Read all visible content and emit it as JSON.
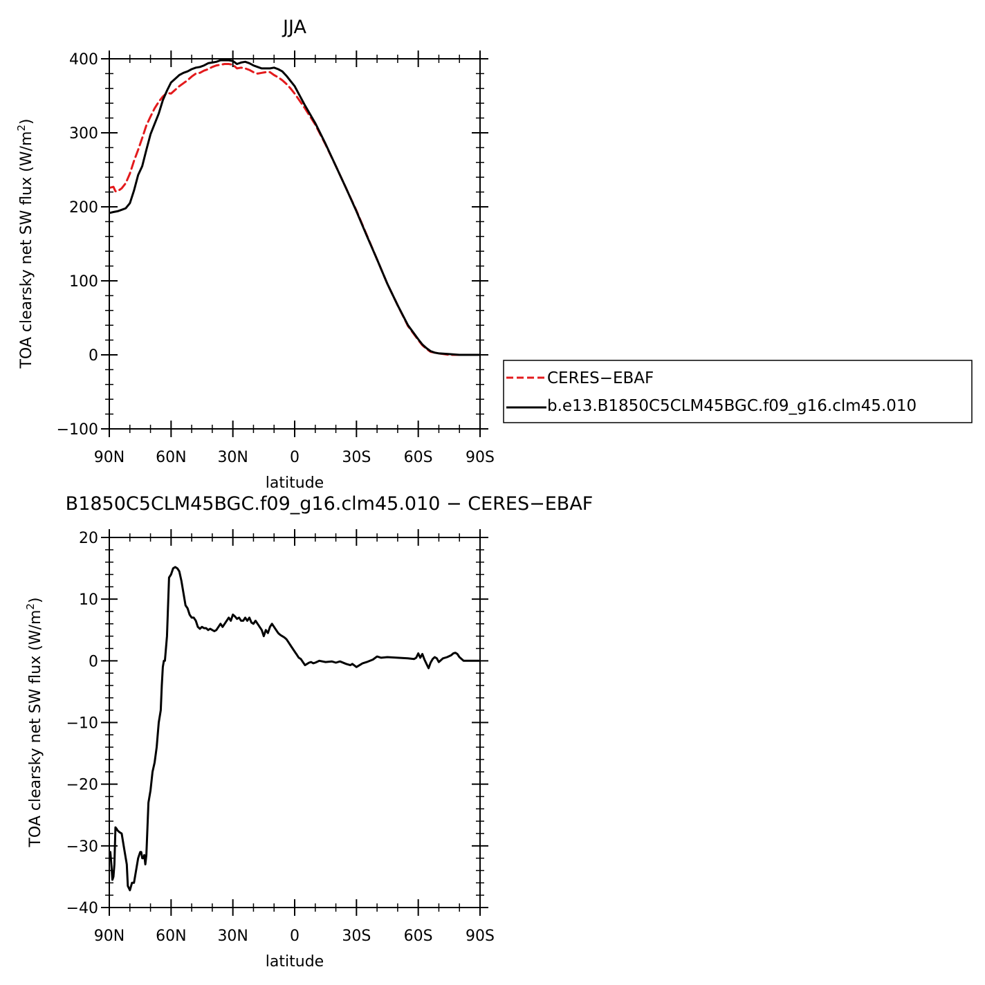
{
  "chart_data": [
    {
      "type": "line",
      "title": "JJA",
      "xlabel": "latitude",
      "ylabel": "TOA clearsky net SW flux (W/m²)",
      "ylabel_parts": {
        "main": "TOA clearsky net SW flux (W/m",
        "sup": "2",
        "tail": ")"
      },
      "xlim": [
        90,
        -90
      ],
      "ylim": [
        -100,
        400
      ],
      "x_ticks": [
        90,
        60,
        30,
        0,
        -30,
        -60,
        -90
      ],
      "x_tick_labels": [
        "90N",
        "60N",
        "30N",
        "0",
        "30S",
        "60S",
        "90S"
      ],
      "y_ticks": [
        -100,
        0,
        100,
        200,
        300,
        400
      ],
      "y_tick_labels": [
        "−100",
        "0",
        "100",
        "200",
        "300",
        "400"
      ],
      "grid": false,
      "legend_position": "right",
      "series": [
        {
          "name": "CERES−EBAF",
          "color": "#e31a1c",
          "dash": "dashed",
          "x": [
            89.5,
            88,
            87,
            86,
            84,
            82,
            80,
            78,
            76,
            74,
            72,
            70,
            68,
            66,
            64,
            62,
            60,
            58,
            56,
            54,
            52,
            50,
            48,
            46,
            44,
            42,
            40,
            38,
            36,
            34,
            32,
            30,
            28,
            26,
            24,
            22,
            20,
            18,
            16,
            14,
            12,
            10,
            8,
            6,
            4,
            2,
            0,
            -5,
            -10,
            -15,
            -20,
            -25,
            -30,
            -35,
            -40,
            -45,
            -50,
            -55,
            -60,
            -62,
            -64,
            -66,
            -68,
            -70,
            -75,
            -80,
            -85,
            -89.5
          ],
          "y": [
            226,
            227,
            221,
            221,
            225,
            232,
            245,
            262,
            277,
            293,
            310,
            322,
            333,
            342,
            349,
            354,
            353,
            358,
            363,
            367,
            371,
            376,
            380,
            381,
            384,
            386,
            389,
            391,
            392,
            393,
            393,
            392,
            387,
            388,
            387,
            385,
            382,
            380,
            381,
            382,
            382,
            378,
            375,
            371,
            366,
            360,
            353,
            333,
            311,
            284,
            255,
            225,
            195,
            162,
            129,
            96,
            67,
            39,
            20,
            13,
            8,
            4,
            3,
            2,
            0,
            0,
            0,
            0
          ]
        },
        {
          "name": "b.e13.B1850C5CLM45BGC.f09_g16.clm45.010",
          "color": "#000000",
          "dash": "solid",
          "x": [
            89.5,
            88,
            86,
            84,
            82,
            80,
            78,
            76,
            74,
            72,
            70,
            68,
            66,
            64,
            62,
            60,
            58,
            56,
            54,
            52,
            50,
            48,
            46,
            44,
            42,
            40,
            38,
            36,
            34,
            32,
            30,
            28,
            26,
            24,
            22,
            20,
            18,
            16,
            14,
            12,
            10,
            8,
            6,
            4,
            2,
            0,
            -5,
            -10,
            -15,
            -20,
            -25,
            -30,
            -35,
            -40,
            -45,
            -50,
            -55,
            -60,
            -62,
            -64,
            -66,
            -68,
            -70,
            -75,
            -80,
            -85,
            -89.5
          ],
          "y": [
            192,
            193,
            194,
            196,
            198,
            205,
            222,
            243,
            255,
            277,
            298,
            312,
            326,
            344,
            357,
            368,
            373,
            378,
            381,
            383,
            386,
            388,
            389,
            391,
            394,
            395,
            396,
            398,
            398,
            398,
            397,
            393,
            395,
            396,
            394,
            391,
            389,
            387,
            387,
            387,
            388,
            386,
            383,
            377,
            370,
            363,
            337,
            313,
            285,
            255,
            225,
            194,
            161,
            129,
            96,
            67,
            40,
            21,
            14,
            9,
            5,
            3,
            2,
            1,
            0,
            0,
            0
          ]
        }
      ]
    },
    {
      "type": "line",
      "title": "B1850C5CLM45BGC.f09_g16.clm45.010 − CERES−EBAF",
      "xlabel": "latitude",
      "ylabel": "TOA clearsky net SW flux (W/m²)",
      "ylabel_parts": {
        "main": "TOA clearsky net SW flux (W/m",
        "sup": "2",
        "tail": ")"
      },
      "xlim": [
        90,
        -90
      ],
      "ylim": [
        -40,
        20
      ],
      "x_ticks": [
        90,
        60,
        30,
        0,
        -30,
        -60,
        -90
      ],
      "x_tick_labels": [
        "90N",
        "60N",
        "30N",
        "0",
        "30S",
        "60S",
        "90S"
      ],
      "y_ticks": [
        -40,
        -30,
        -20,
        -10,
        0,
        10,
        20
      ],
      "y_tick_labels": [
        "−40",
        "−30",
        "−20",
        "−10",
        "0",
        "10",
        "20"
      ],
      "grid": false,
      "series": [
        {
          "name": "",
          "color": "#000000",
          "dash": "solid",
          "x": [
            89.5,
            89,
            88.5,
            88,
            87.5,
            87,
            86.5,
            86,
            85,
            84,
            83,
            82.5,
            82,
            81.5,
            81,
            80,
            79,
            78,
            77,
            76,
            75,
            74.5,
            74,
            73.5,
            73,
            72.5,
            72,
            71,
            70,
            69,
            68,
            67,
            66.5,
            66,
            65,
            64.5,
            64,
            63.5,
            63,
            62,
            61,
            60,
            59,
            58,
            57,
            56,
            55,
            54,
            53,
            52,
            51,
            50,
            49,
            48,
            47,
            46,
            45,
            44,
            43,
            42,
            41,
            40,
            39,
            38,
            37,
            36,
            35,
            34,
            33,
            32,
            31,
            30,
            29,
            28,
            27,
            26,
            25,
            24,
            23,
            22,
            21,
            20,
            19,
            18,
            17,
            16,
            15,
            14,
            13,
            12,
            11,
            10,
            9,
            8,
            7,
            6,
            5,
            4,
            3,
            2,
            1,
            0,
            -1,
            -2,
            -3,
            -4,
            -5,
            -6,
            -7,
            -8,
            -9,
            -10,
            -12,
            -15,
            -18,
            -20,
            -22,
            -25,
            -27,
            -28,
            -30,
            -32,
            -33,
            -35,
            -38,
            -40,
            -42,
            -45,
            -50,
            -55,
            -58,
            -59,
            -60,
            -61,
            -62,
            -63,
            -64,
            -65,
            -66,
            -67,
            -68,
            -69,
            -70,
            -72,
            -74,
            -76,
            -77,
            -78,
            -79,
            -80,
            -82,
            -85,
            -89.5
          ],
          "y": [
            -31,
            -33,
            -35.5,
            -35,
            -33,
            -27,
            -27.2,
            -27.5,
            -27.8,
            -28,
            -30,
            -31,
            -32,
            -33,
            -36.5,
            -37.2,
            -36,
            -36,
            -34,
            -32,
            -31,
            -31,
            -32,
            -32,
            -31.5,
            -33,
            -31.5,
            -23,
            -21,
            -18,
            -16.5,
            -14,
            -12,
            -10,
            -8,
            -4,
            -1,
            0,
            0,
            4,
            13.5,
            14,
            15,
            15.2,
            15,
            14.5,
            13,
            11,
            9,
            8.5,
            7.5,
            7,
            7,
            6.5,
            5.5,
            5.2,
            5.5,
            5.3,
            5.3,
            5,
            5.2,
            5,
            4.8,
            5,
            5.5,
            6,
            5.5,
            6,
            6.5,
            7,
            6.5,
            7.5,
            7.2,
            6.8,
            7,
            6.5,
            6.5,
            7,
            6.5,
            7,
            6.2,
            6,
            6.5,
            6,
            5.5,
            5,
            4,
            5,
            4.5,
            5.5,
            6,
            5.5,
            5,
            4.5,
            4.2,
            4,
            3.8,
            3.5,
            3,
            2.5,
            2,
            1.5,
            1,
            0.5,
            0.3,
            -0.2,
            -0.7,
            -0.5,
            -0.3,
            -0.2,
            -0.4,
            -0.3,
            0,
            -0.2,
            -0.1,
            -0.3,
            -0.1,
            -0.5,
            -0.7,
            -0.5,
            -1,
            -0.6,
            -0.4,
            -0.2,
            0.2,
            0.7,
            0.5,
            0.6,
            0.5,
            0.4,
            0.3,
            0.5,
            1.2,
            0.5,
            1.1,
            0.2,
            -0.5,
            -1.2,
            -0.3,
            0.3,
            0.6,
            0.4,
            -0.2,
            0.4,
            0.6,
            0.9,
            1.2,
            1.3,
            1.1,
            0.6,
            0,
            0,
            0
          ]
        }
      ]
    }
  ]
}
